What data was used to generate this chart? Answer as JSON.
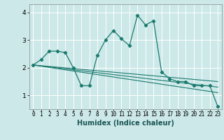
{
  "title": "",
  "xlabel": "Humidex (Indice chaleur)",
  "bg_color": "#cce8e8",
  "grid_color": "#ffffff",
  "line_color": "#1a7a6e",
  "xlim": [
    -0.5,
    23.5
  ],
  "ylim": [
    0.5,
    4.3
  ],
  "yticks": [
    1,
    2,
    3,
    4
  ],
  "xticks": [
    0,
    1,
    2,
    3,
    4,
    5,
    6,
    7,
    8,
    9,
    10,
    11,
    12,
    13,
    14,
    15,
    16,
    17,
    18,
    19,
    20,
    21,
    22,
    23
  ],
  "series1_x": [
    0,
    1,
    2,
    3,
    4,
    5,
    6,
    7,
    8,
    9,
    10,
    11,
    12,
    13,
    14,
    15,
    16,
    17,
    18,
    19,
    20,
    21,
    22,
    23
  ],
  "series1_y": [
    2.1,
    2.3,
    2.6,
    2.6,
    2.55,
    2.0,
    1.35,
    1.35,
    2.45,
    3.0,
    3.35,
    3.05,
    2.8,
    3.9,
    3.55,
    3.7,
    1.85,
    1.6,
    1.5,
    1.5,
    1.35,
    1.35,
    1.35,
    0.6
  ],
  "series2_x": [
    0,
    23
  ],
  "series2_y": [
    2.1,
    1.1
  ],
  "series3_x": [
    0,
    23
  ],
  "series3_y": [
    2.1,
    1.3
  ],
  "series4_x": [
    0,
    23
  ],
  "series4_y": [
    2.1,
    1.5
  ]
}
